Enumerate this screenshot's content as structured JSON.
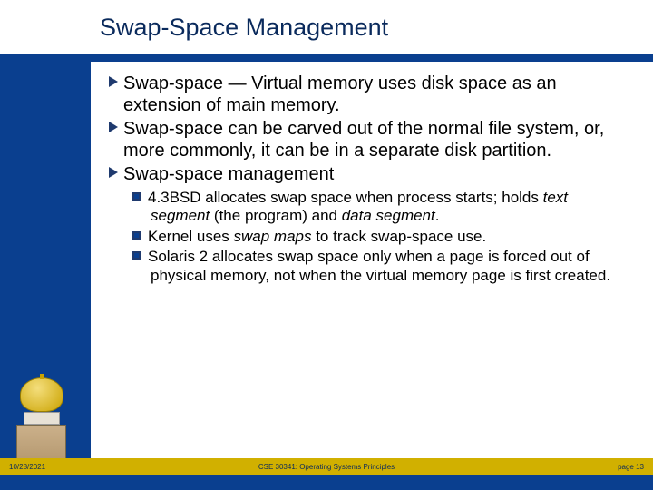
{
  "title": "Swap-Space Management",
  "bullets": {
    "b1": "Swap-space — Virtual memory uses disk space as an extension of main memory.",
    "b2": "Swap-space can be carved out of the normal file system, or, more commonly, it can be in a separate disk partition.",
    "b3": "Swap-space management",
    "s1_a": "4.3BSD allocates swap space when process starts; holds ",
    "s1_em1": "text segment",
    "s1_b": " (the program) and ",
    "s1_em2": "data segment",
    "s1_c": ".",
    "s2_a": "Kernel uses ",
    "s2_em": "swap maps",
    "s2_b": " to track swap-space use.",
    "s3": "Solaris 2 allocates swap space only when a page is forced out of physical memory, not when the virtual memory page is first created."
  },
  "footer": {
    "date": "10/28/2021",
    "course": "CSE 30341: Operating Systems Principles",
    "page": "page 13"
  },
  "colors": {
    "brand_blue": "#0a3f8f",
    "title_blue": "#0a2a5c",
    "gold": "#d1b000"
  }
}
